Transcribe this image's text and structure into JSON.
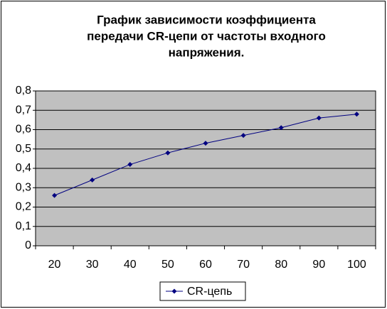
{
  "chart_data": {
    "type": "line",
    "title": [
      "График зависимости коэффициента",
      "передачи CR-цепи от частоты входного",
      "напряжения."
    ],
    "categories": [
      "20",
      "30",
      "40",
      "50",
      "60",
      "70",
      "80",
      "90",
      "100"
    ],
    "series": [
      {
        "name": "CR-цепь",
        "color": "#000080",
        "values": [
          0.26,
          0.34,
          0.42,
          0.48,
          0.53,
          0.57,
          0.61,
          0.66,
          0.68
        ]
      }
    ],
    "ylim": [
      0,
      0.8
    ],
    "yticks": [
      0,
      {
        "value": 0.1,
        "label": "0,1"
      },
      {
        "value": 0.2,
        "label": "0,2"
      },
      {
        "value": 0.3,
        "label": "0,3"
      },
      {
        "value": 0.4,
        "label": "0,4"
      },
      {
        "value": 0.5,
        "label": "0,5"
      },
      {
        "value": 0.6,
        "label": "0,6"
      },
      {
        "value": 0.7,
        "label": "0,7"
      },
      {
        "value": 0.8,
        "label": "0,8"
      }
    ],
    "grid": true,
    "legend": "bottom"
  }
}
